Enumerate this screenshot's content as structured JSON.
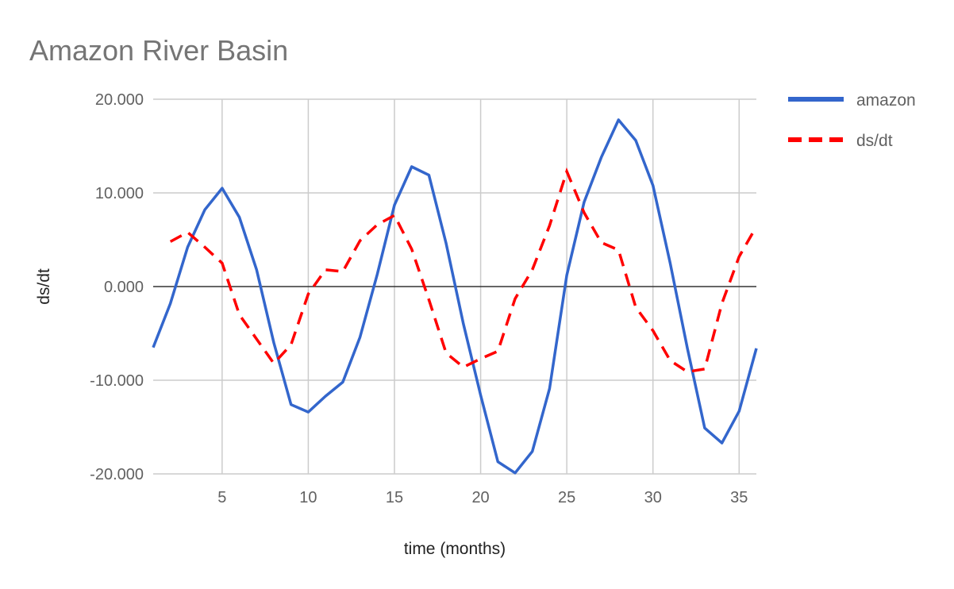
{
  "chart_data": {
    "type": "line",
    "title": "Amazon River Basin",
    "xlabel": "time (months)",
    "ylabel": "ds/dt",
    "xlim": [
      1,
      36
    ],
    "ylim": [
      -20,
      20
    ],
    "xticks": [
      5,
      10,
      15,
      20,
      25,
      30,
      35
    ],
    "yticks": [
      20,
      10,
      0,
      -10,
      -20
    ],
    "ytick_labels": [
      "20.000",
      "10.000",
      "0.000",
      "-10.000",
      "-20.000"
    ],
    "grid": true,
    "legend": "right",
    "series": [
      {
        "name": "amazon",
        "color": "#3366cc",
        "style": "solid",
        "x": [
          1,
          2,
          3,
          4,
          5,
          6,
          7,
          8,
          9,
          10,
          11,
          12,
          13,
          14,
          15,
          16,
          17,
          18,
          19,
          20,
          21,
          22,
          23,
          24,
          25,
          26,
          27,
          28,
          29,
          30,
          31,
          32,
          33,
          34,
          35,
          36
        ],
        "y": [
          -6.5,
          -1.8,
          4.2,
          8.2,
          10.5,
          7.4,
          1.8,
          -6.0,
          -12.6,
          -13.4,
          -11.7,
          -10.2,
          -5.4,
          1.3,
          8.7,
          12.8,
          11.9,
          4.6,
          -4.0,
          -11.6,
          -18.7,
          -19.9,
          -17.6,
          -10.9,
          1.2,
          9.0,
          13.8,
          17.8,
          15.6,
          10.8,
          2.5,
          -6.6,
          -15.1,
          -16.7,
          -13.3,
          -6.6
        ]
      },
      {
        "name": "ds/dt",
        "color": "#ff0000",
        "style": "dashed",
        "x": [
          2,
          3,
          4,
          5,
          6,
          7,
          8,
          9,
          10,
          11,
          12,
          13,
          14,
          15,
          16,
          17,
          18,
          19,
          20,
          21,
          22,
          23,
          24,
          25,
          26,
          27,
          28,
          29,
          30,
          31,
          32,
          33,
          34,
          35,
          36
        ],
        "y": [
          4.8,
          5.8,
          4.2,
          2.5,
          -3.0,
          -5.6,
          -8.2,
          -6.2,
          -0.8,
          1.8,
          1.6,
          4.9,
          6.6,
          7.6,
          4.0,
          -1.4,
          -7.1,
          -8.6,
          -7.7,
          -6.9,
          -1.3,
          1.8,
          6.5,
          12.3,
          7.9,
          4.7,
          3.9,
          -2.2,
          -4.7,
          -7.9,
          -9.1,
          -8.8,
          -1.8,
          3.2,
          6.4
        ]
      }
    ]
  }
}
